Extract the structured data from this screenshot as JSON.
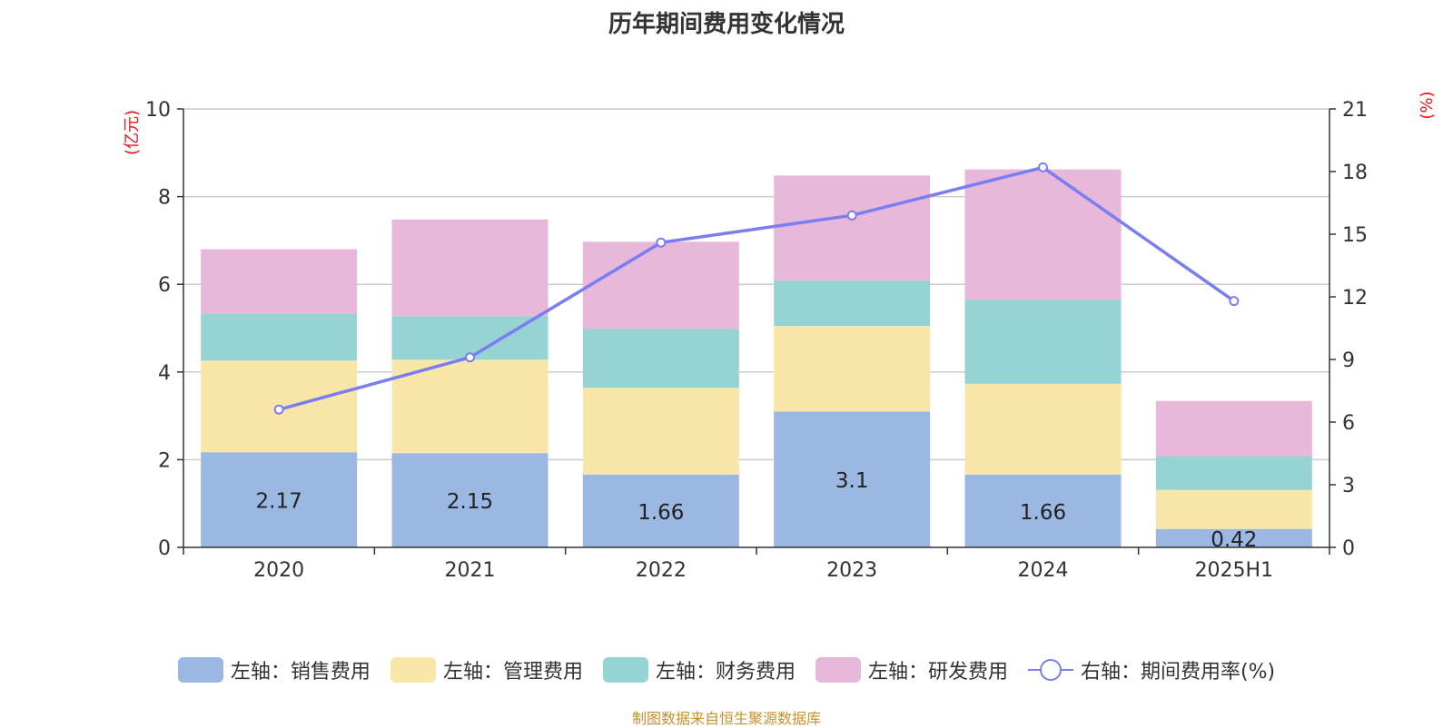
{
  "chart_data": {
    "type": "bar",
    "title": "历年期间费用变化情况",
    "categories": [
      "2020",
      "2021",
      "2022",
      "2023",
      "2024",
      "2025H1"
    ],
    "left_axis": {
      "unit": "(亿元)",
      "ylim": [
        0,
        10
      ],
      "ticks": [
        "0",
        "2",
        "4",
        "6",
        "8",
        "10"
      ]
    },
    "right_axis": {
      "unit": "(%)",
      "ylim": [
        0,
        21
      ],
      "ticks": [
        "0",
        "3",
        "6",
        "9",
        "12",
        "15",
        "18",
        "21"
      ]
    },
    "series": [
      {
        "name": "左轴：销售费用",
        "axis": "left",
        "type": "bar",
        "stack": "total",
        "color": "#9bb8e2",
        "values": [
          2.17,
          2.15,
          1.66,
          3.1,
          1.66,
          0.42
        ],
        "labels": [
          "2.17",
          "2.15",
          "1.66",
          "3.1",
          "1.66",
          "0.42"
        ]
      },
      {
        "name": "左轴：管理费用",
        "axis": "left",
        "type": "bar",
        "stack": "total",
        "color": "#f8e7a8",
        "values": [
          2.09,
          2.13,
          1.98,
          1.95,
          2.07,
          0.89
        ]
      },
      {
        "name": "左轴：财务费用",
        "axis": "left",
        "type": "bar",
        "stack": "total",
        "color": "#96d3d3",
        "values": [
          1.06,
          0.99,
          1.34,
          1.04,
          1.92,
          0.77
        ]
      },
      {
        "name": "左轴：研发费用",
        "axis": "left",
        "type": "bar",
        "stack": "total",
        "color": "#e7b8d9",
        "values": [
          1.48,
          2.21,
          1.99,
          2.39,
          2.97,
          1.26
        ]
      },
      {
        "name": "右轴：期间费用率(%)",
        "axis": "right",
        "type": "line",
        "color": "#7b7ef0",
        "values": [
          6.6,
          9.1,
          14.6,
          15.9,
          18.2,
          11.8
        ]
      }
    ],
    "grid": true,
    "legend": "bottom"
  },
  "footer": {
    "source": "制图数据来自恒生聚源数据库"
  }
}
